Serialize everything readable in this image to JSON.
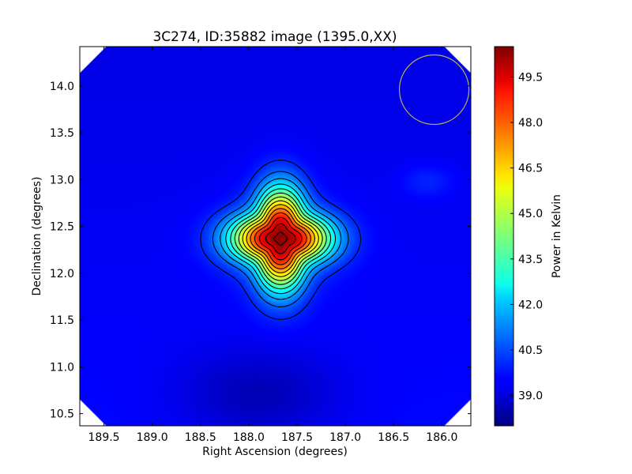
{
  "chart_data": {
    "type": "heatmap",
    "title": "3C274, ID:35882 image (1395.0,XX)",
    "xlabel": "Right Ascension (degrees)",
    "ylabel": "Declination (degrees)",
    "colorbar_label": "Power in Kelvin",
    "colormap": "jet",
    "x_axis_inverted": true,
    "xlim": [
      189.75,
      185.7
    ],
    "ylim": [
      10.37,
      14.42
    ],
    "x_ticks": [
      189.5,
      189.0,
      188.5,
      188.0,
      187.5,
      187.0,
      186.5,
      186.0
    ],
    "x_tick_labels": [
      "189.5",
      "189.0",
      "188.5",
      "188.0",
      "187.5",
      "187.0",
      "186.5",
      "186.0"
    ],
    "y_ticks": [
      10.5,
      11.0,
      11.5,
      12.0,
      12.5,
      13.0,
      13.5,
      14.0
    ],
    "y_tick_labels": [
      "10.5",
      "11.0",
      "11.5",
      "12.0",
      "12.5",
      "13.0",
      "13.5",
      "14.0"
    ],
    "color_range": [
      38.0,
      50.5
    ],
    "colorbar_ticks": [
      39.0,
      40.5,
      42.0,
      43.5,
      45.0,
      46.5,
      48.0,
      49.5
    ],
    "colorbar_tick_labels": [
      "39.0",
      "40.5",
      "42.0",
      "43.5",
      "45.0",
      "46.5",
      "48.0",
      "49.5"
    ],
    "peak": {
      "ra": 187.67,
      "dec": 12.37,
      "value": 50.5
    },
    "background_level": 39.6,
    "contour_levels": [
      40.0,
      40.8,
      41.6,
      42.4,
      43.2,
      44.0,
      44.8,
      45.6,
      46.4,
      47.2,
      48.0,
      48.8,
      49.6,
      50.2
    ],
    "secondary_features": [
      {
        "kind": "closed-contour",
        "ra": 186.15,
        "dec": 12.98,
        "value": 40.05
      },
      {
        "kind": "low-contour",
        "ra": 187.9,
        "dec": 10.7,
        "value": 39.0
      }
    ],
    "beam": {
      "ra": 186.08,
      "dec": 13.96,
      "radius_deg": 0.36,
      "color": "#b5b25a"
    },
    "grid": false
  }
}
